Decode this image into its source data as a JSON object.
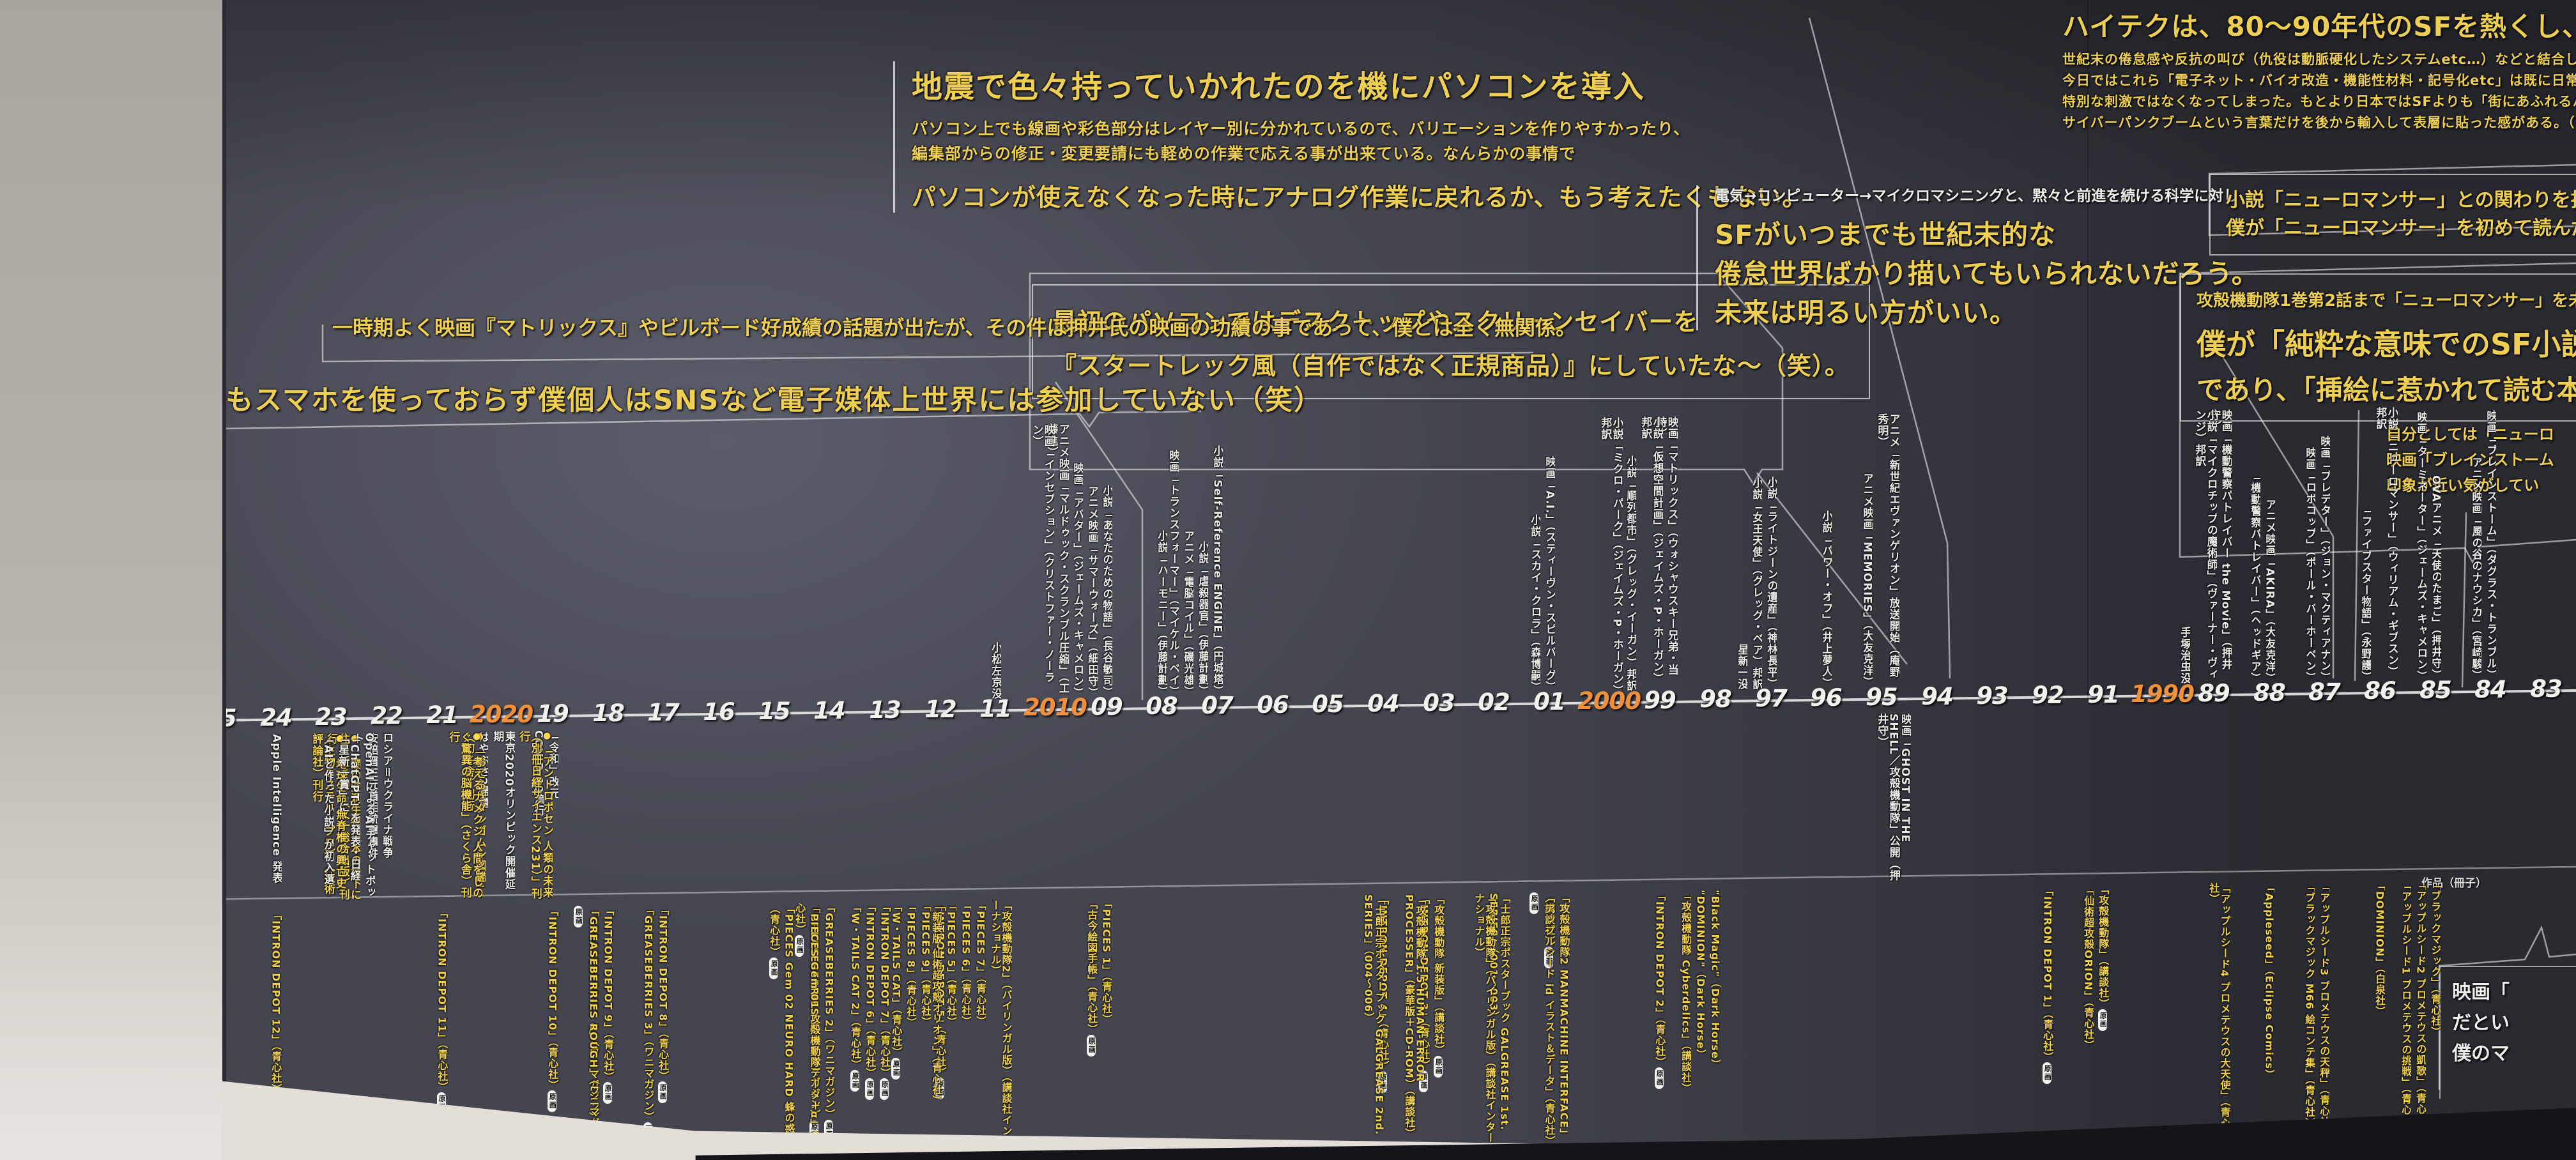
{
  "colors": {
    "board": "#44454f",
    "accent_yellow": "#f3d24b",
    "accent_orange": "#f0913a",
    "text_white": "#eae9e6"
  },
  "notes": {
    "a": {
      "headline": "地震で色々持っていかれたのを機にパソコンを導入",
      "line1": "パソコン上でも線画や彩色部分はレイヤー別に分かれているので、バリエーションを作りやすかったり、",
      "line2": "編集部からの修正・変更要請にも軽めの作業で応える事が出来ている。なんらかの事情で",
      "line3": "パソコンが使えなくなった時にアナログ作業に戻れるか、もう考えたくもない。"
    },
    "b": {
      "line1": "最初のパソコンではデスクトップやスクリーンセイバーを",
      "line2": "『スタートレック風（自作ではなく正規商品）』にしていたな～（笑）。"
    },
    "c": "一時期よく映画『マトリックス』やビルボード好成績の話題が出たが、その件は押井氏の映画の功績の事であって、僕とは全く無関係。",
    "d": "今もスマホを使っておらず僕個人はSNSなど電子媒体上世界には参加していない（笑）",
    "e": {
      "intro": "電気→コンピューター→マイクロマシニングと、黙々と前進を続ける科学に対し",
      "line1": "SFがいつまでも世紀末的な",
      "line2": "倦怠世界ばかり描いてもいられないだろう。",
      "line3": "未来は明るい方がいい。"
    },
    "f": {
      "headline": "ハイテクは、80～90年代のSFを熱くし、",
      "line1": "世紀末の倦怠感や反抗の叫び（仇役は動脈硬化したシステムetc…）などと結合し、サイバーパンクなる動きを生んだ。",
      "line2": "今日ではこれら「電子ネット・バイオ改造・機能性材料・記号化etc」は既に日常化し、",
      "line3": "特別な刺激ではなくなってしまった。もとより日本ではSFよりも「街にあふれるハイテク商品」の方が主流であり、",
      "line4": "サイバーパンクブームという言葉だけを後から輸入して表層に貼った感がある。（なぜだ…!?）"
    },
    "g": {
      "line1": "小説「ニューロマンサー」との関わりを指摘される事",
      "line2": "僕が「ニューロマンサー」を初めて読んだのは「攻殻"
    },
    "h": {
      "line1": "攻殻機動隊1巻第2話まで「ニューロマンサー」を未読だった",
      "line2": "僕が「純粋な意味でのSF小説好き」で",
      "line3": "であり、「挿絵に惹かれて読む本を選ぶ"
    },
    "i": {
      "line1": "自分としては「ニューロ",
      "line2": "映画「ブレインストーム",
      "line3": "印象が近い気がしてい"
    },
    "j": {
      "line1": "映画「",
      "line2": "だとい",
      "line3": "僕のマ"
    }
  },
  "timeline": {
    "pill_label": "原画",
    "works_section_label": "作品（冊子）",
    "years": [
      {
        "label": "25"
      },
      {
        "label": "24"
      },
      {
        "label": "23"
      },
      {
        "label": "22"
      },
      {
        "label": "21"
      },
      {
        "label": "2020",
        "highlight": true
      },
      {
        "label": "19"
      },
      {
        "label": "18"
      },
      {
        "label": "17"
      },
      {
        "label": "16"
      },
      {
        "label": "15"
      },
      {
        "label": "14"
      },
      {
        "label": "13"
      },
      {
        "label": "12"
      },
      {
        "label": "11"
      },
      {
        "label": "2010",
        "highlight": true
      },
      {
        "label": "09"
      },
      {
        "label": "08"
      },
      {
        "label": "07"
      },
      {
        "label": "06"
      },
      {
        "label": "05"
      },
      {
        "label": "04"
      },
      {
        "label": "03"
      },
      {
        "label": "02"
      },
      {
        "label": "01"
      },
      {
        "label": "2000",
        "highlight": true
      },
      {
        "label": "99"
      },
      {
        "label": "98"
      },
      {
        "label": "97"
      },
      {
        "label": "96"
      },
      {
        "label": "95"
      },
      {
        "label": "94"
      },
      {
        "label": "93"
      },
      {
        "label": "92"
      },
      {
        "label": "91"
      },
      {
        "label": "1990",
        "highlight": true
      },
      {
        "label": "89"
      },
      {
        "label": "88"
      },
      {
        "label": "87"
      },
      {
        "label": "86"
      },
      {
        "label": "85"
      },
      {
        "label": "84"
      },
      {
        "label": "83"
      }
    ],
    "entries_above": [
      {
        "year": "11",
        "text": "小松左京没"
      },
      {
        "year": "2010",
        "text": "アニメ映画「マルドゥック・スクランブル圧縮」（工藤進）"
      },
      {
        "year": "2010",
        "text": "映画「インセプション」（クリストファー・ノーラン）"
      },
      {
        "year": "09",
        "text": "小説「あなたのための物語」（長谷敏司）"
      },
      {
        "year": "09",
        "text": "アニメ映画「サマーウォーズ」（細田守）"
      },
      {
        "year": "09",
        "text": "映画「アバター」（ジェームズ・キャメロン）"
      },
      {
        "year": "08",
        "text": "小説「ハーモニー」（伊藤計劃）"
      },
      {
        "year": "07",
        "text": "小説「Self-Reference ENGINE」（円城塔）"
      },
      {
        "year": "07",
        "text": "小説「虐殺器官」（伊藤計劃）"
      },
      {
        "year": "07",
        "text": "アニメ「電脳コイル」（磯光雄）"
      },
      {
        "year": "07",
        "text": "映画「トランスフォーマー」（マイケル・ベイ）"
      },
      {
        "year": "01",
        "text": "映画「A.I.」（スティーヴン・スピルバーグ）"
      },
      {
        "year": "01",
        "text": "小説「スカイ・クロラ」（森博嗣）"
      },
      {
        "year": "2000",
        "text": "小説「ミクロ・パーク」（ジェイムズ・P・ホーガン）邦訳"
      },
      {
        "year": "99",
        "text": "映画「マトリックス」（ウォシャウスキー兄弟・当時）"
      },
      {
        "year": "99",
        "text": "小説「仮想空間計画」（ジェイムズ・P・ホーガン）邦訳"
      },
      {
        "year": "99",
        "text": "小説「順列都市」（グレッグ・イーガン）邦訳"
      },
      {
        "year": "97",
        "text": "小説「ライトジーンの遺産」（神林長平）"
      },
      {
        "year": "97",
        "text": "小説「女王天使」（グレッグ・ベア）邦訳"
      },
      {
        "year": "97",
        "text": "星新一没"
      },
      {
        "year": "96",
        "text": "小説「パワー・オフ」（井上夢人）"
      },
      {
        "year": "95",
        "text": "アニメ「新世紀エヴァンゲリオン」放送開始（庵野秀明）"
      },
      {
        "year": "95",
        "text": "アニメ映画「MEMORIES」（大友克洋）"
      },
      {
        "year": "89",
        "text": "映画「機動警察パトレイバー the Movie」（押井守）"
      },
      {
        "year": "89",
        "text": "小説「マイクロチップの魔術師」（ヴァーナー・ヴィンジ）邦訳"
      },
      {
        "year": "89",
        "text": "手塚治虫没"
      },
      {
        "year": "88",
        "text": "アニメ映画「AKIRA」（大友克洋）"
      },
      {
        "year": "88",
        "text": "「機動警察パトレイバー」（ヘッドギア）"
      },
      {
        "year": "87",
        "text": "映画「プレデター」（ジョン・マクティアナン）"
      },
      {
        "year": "87",
        "text": "映画「ロボコップ」（ポール・バーホーベン）"
      },
      {
        "year": "86",
        "text": "小説「ニューロマンサー」（ウィリアム・ギブスン）邦訳"
      },
      {
        "year": "86",
        "text": "「ファイブスター物語」（永野護）"
      },
      {
        "year": "85",
        "text": "OVAアニメ「天使のたまご」（押井守）"
      },
      {
        "year": "85",
        "text": "映画「ターミネーター」（ジェームズ・キャメロン）"
      },
      {
        "year": "84",
        "text": "映画「ブレインストーム」（ダグラス・トランブル）"
      },
      {
        "year": "84",
        "text": "アニメ映画「風の谷のナウシカ」（宮崎駿）"
      }
    ],
    "entries_below": [
      {
        "year": "24",
        "text": "Apple Intelligence 発表",
        "color": "white"
      },
      {
        "year": "23",
        "text": "「闇の空洞生物 日本の地下に住む生き物」（文一総合出版）刊行",
        "color": "yellow",
        "dot": true
      },
      {
        "year": "23",
        "text": "「地球生命 無脊椎の興亡史（生物ミステリープロ）」（技術評論社）刊行",
        "color": "yellow",
        "dot": true
      },
      {
        "year": "22",
        "text": "ロシア＝ウクライナ戦争",
        "color": "white"
      },
      {
        "year": "22",
        "text": "安倍晋三元首相銃撃事件",
        "color": "white"
      },
      {
        "year": "22",
        "text": "OpenAIによるAIチャットボット",
        "color": "white"
      },
      {
        "year": "22",
        "text": "「ChatGPT」を発表・日経「星新一賞」に",
        "color": "white"
      },
      {
        "year": "22",
        "text": "「AIと作った小説」が初入選",
        "color": "white"
      },
      {
        "year": "2020",
        "text": "東京2020オリンピック開催延期",
        "color": "white"
      },
      {
        "year": "2020",
        "text": "はやぶさ2帰還",
        "color": "white"
      },
      {
        "year": "2020",
        "text": "「おどろきダンゴムシ図鑑」（幻冬舎）刊行",
        "color": "yellow",
        "dot": true
      },
      {
        "year": "2020",
        "text": "「考えるナメクジ 人間をしのぐ驚異の脳機能」（さくら舎）刊行",
        "color": "yellow",
        "dot": true
      },
      {
        "year": "19",
        "text": "「令和」改元",
        "color": "white"
      },
      {
        "year": "19",
        "text": "COVID-19流行",
        "color": "white"
      },
      {
        "year": "19",
        "text": "「アントロポセン 人類の未来（別冊日経サイエンス231）」刊行",
        "color": "yellow",
        "dot": true
      },
      {
        "year": "95",
        "text": "映画「GHOST IN THE SHELL／攻殻機動隊」公開（押井守）",
        "color": "white"
      }
    ],
    "entries_works": [
      {
        "year": "24",
        "text": "「INTRON DEPOT 12」（青心社）",
        "pill": true
      },
      {
        "year": "21",
        "text": "「INTRON DEPOT 11」（青心社）",
        "pill": true
      },
      {
        "year": "19",
        "text": "「INTRON DEPOT 10」（青心社）",
        "pill": true
      },
      {
        "year": "18",
        "text": "「INTRON DEPOT 9」（青心社）",
        "pill": true
      },
      {
        "year": "18",
        "text": "「GREASEBERRIES 4」（ワニマガジン）",
        "pill": true
      },
      {
        "year": "18",
        "text": "「GREASEBERRIES ROUGH」（ワニマガジン）",
        "pill": true
      },
      {
        "year": "17",
        "text": "「INTRON DEPOT 8」（青心社）",
        "pill": true
      },
      {
        "year": "17",
        "text": "「GREASEBERRIES 3」（ワニマガジン）",
        "pill": true
      },
      {
        "year": "15",
        "text": "「PIECES Gem 02 NEURO HARD 蜂の惑星」（青心社）",
        "pill": true
      },
      {
        "year": "14",
        "text": "「GREASEBERRIES 2」（ワニマガジン）",
        "pill": true
      },
      {
        "year": "14",
        "text": "「GREASEBERRIES 1」（ワニマガジン）",
        "pill": true
      },
      {
        "year": "14",
        "text": "「PIECES Gem 01 攻殻機動隊データ＋α」（青心社）",
        "pill": true
      },
      {
        "year": "13",
        "text": "「INTRON DEPOT 7」（青心社）",
        "pill": true
      },
      {
        "year": "13",
        "text": "「INTRON DEPOT 6」（青心社）",
        "pill": true
      },
      {
        "year": "13",
        "text": "「W・TAILS CAT 2」（青心社）",
        "pill": true
      },
      {
        "year": "12",
        "text": "「INTRON DEPOT 5」（青心社）",
        "pill": true
      },
      {
        "year": "12",
        "text": "「PIECES 9」（青心社）"
      },
      {
        "year": "12",
        "text": "「PIECES 8」（青心社）"
      },
      {
        "year": "12",
        "text": "「W・TAILS CAT」（青心社）",
        "pill": true
      },
      {
        "year": "11",
        "text": "「攻殻機動隊2」（バイリンガル版）（講談社インターナショナル）"
      },
      {
        "year": "11",
        "text": "「PIECES 7」（青心社）"
      },
      {
        "year": "11",
        "text": "「PIECES 6」（青心社）"
      },
      {
        "year": "11",
        "text": "「PIECES 5」（青心社）"
      },
      {
        "year": "11",
        "text": "「新装版 仙術超攻殻オリオン」（青心社）"
      },
      {
        "year": "10",
        "text": "「PIECES 4」（青心社）"
      },
      {
        "year": "10",
        "text": "「PIECES 3」（青心社）"
      },
      {
        "year": "10",
        "text": "「PIECES 2」（青心社）"
      },
      {
        "year": "09",
        "text": "「PIECES 1」（青心社）"
      },
      {
        "year": "09",
        "text": "「古今絵図手帳」（青心社）",
        "pill": true
      },
      {
        "year": "04",
        "text": "「INTRON DEPOT 4」（青心社）",
        "pill": true
      },
      {
        "year": "04",
        "text": "「士郎正宗ポスターブック GALGREASE 2nd. SERIES」（004～006）"
      },
      {
        "year": "03",
        "text": "「攻殻機動隊 新装版」（講談社）",
        "pill": true
      },
      {
        "year": "03",
        "text": "「INTRON DEPOT 3」（青心社）",
        "pill": true
      },
      {
        "year": "03",
        "text": "「攻殻機動隊 1.5 HUMAN-ERROR PROCESSER」（豪華版＋CD-ROM）（講談社）"
      },
      {
        "year": "02",
        "text": "「士郎正宗ポスターブック GALGREASE 1st. SERIES」（001～003）"
      },
      {
        "year": "02",
        "text": "「攻殻機動隊」（バイリンガル版）（講談社インターナショナル）"
      },
      {
        "year": "01",
        "text": "「攻殻機動隊2 MANMACHINE INTERFACE」（講談社）",
        "pill": true
      },
      {
        "year": "01",
        "text": "「アップルシード id イラスト＆データ」（青心社）",
        "pill": true
      },
      {
        "year": "99",
        "text": "「INTRON DEPOT 2」（青心社）",
        "pill": true
      },
      {
        "year": "98",
        "text": "\"Black Magic\"（Dark Horse）"
      },
      {
        "year": "98",
        "text": "\"DOMINION\"（Dark Horse）"
      },
      {
        "year": "98",
        "text": "「攻殻機動隊 Cyberdelics」（講談社）"
      },
      {
        "year": "92",
        "text": "「INTRON DEPOT 1」（青心社）",
        "pill": true
      },
      {
        "year": "91",
        "text": "「攻殻機動隊」（講談社）",
        "pill": true
      },
      {
        "year": "91",
        "text": "「仙術超攻殻ORION」（青心社）"
      },
      {
        "year": "89",
        "text": "「アップルシード4 プロメテウスの大天使」（青心社）"
      },
      {
        "year": "88",
        "text": "「Appleseed」（Eclipse Comics）"
      },
      {
        "year": "87",
        "text": "「アップルシード3 プロメテウスの天秤」（青心社）"
      },
      {
        "year": "87",
        "text": "「ブラックマジック M66 絵コンテ集」（青心社）"
      },
      {
        "year": "86",
        "text": "「DOMINION」（白泉社）"
      },
      {
        "year": "85",
        "text": "「ブラックマジック」（青心社）"
      },
      {
        "year": "85",
        "text": "「アップルシード2 プロメテウスの凱歌」（青心社）"
      },
      {
        "year": "85",
        "text": "「アップルシード1 プロメテウスの挑戦」（青心社）"
      }
    ]
  }
}
